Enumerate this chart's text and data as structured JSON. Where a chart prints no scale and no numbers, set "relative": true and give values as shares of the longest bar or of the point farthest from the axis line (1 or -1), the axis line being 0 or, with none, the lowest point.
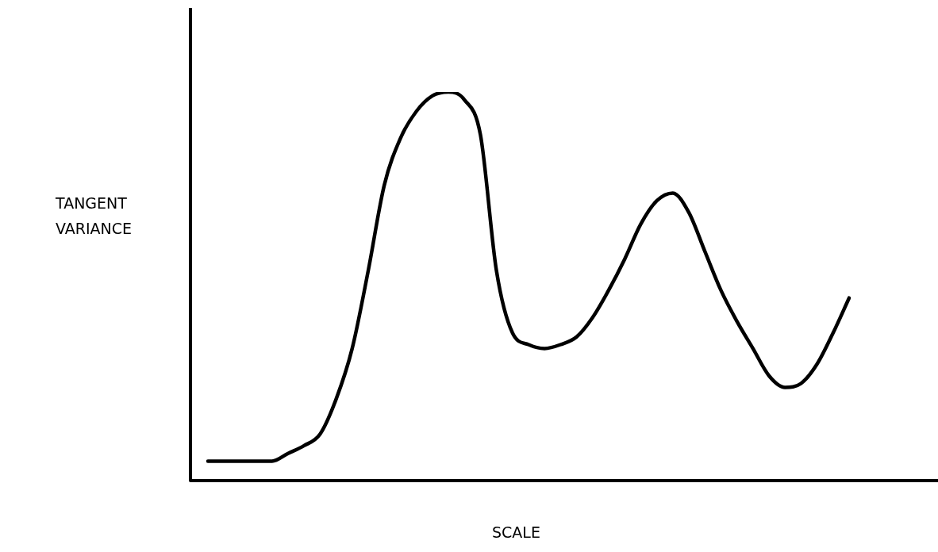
{
  "chart_data": {
    "type": "line",
    "relative": true,
    "xlabel": "SCALE",
    "ylabel": "TANGENT VARIANCE",
    "categories": [
      null,
      null,
      null,
      null,
      null,
      null,
      null,
      null,
      null,
      null,
      null,
      null,
      null,
      null,
      null,
      null,
      null,
      null,
      null,
      null,
      null,
      null,
      null,
      null,
      null,
      null,
      null,
      null,
      null,
      null,
      null,
      null,
      null,
      null,
      null,
      null,
      null,
      null,
      null,
      null,
      null
    ],
    "series": [
      {
        "color": "#000000",
        "values": [
          0.05,
          0.05,
          0.05,
          0.05,
          0.05,
          0.07,
          0.09,
          0.12,
          0.21,
          0.34,
          0.54,
          0.76,
          0.88,
          0.95,
          0.99,
          1,
          0.98,
          0.89,
          0.54,
          0.38,
          0.35,
          0.34,
          0.35,
          0.37,
          0.42,
          0.49,
          0.57,
          0.66,
          0.72,
          0.74,
          0.69,
          0.59,
          0.49,
          0.41,
          0.34,
          0.27,
          0.24,
          0.25,
          0.3,
          0.38,
          0.47
        ]
      }
    ],
    "legend": false,
    "marker": "none",
    "line_style": "solid"
  }
}
